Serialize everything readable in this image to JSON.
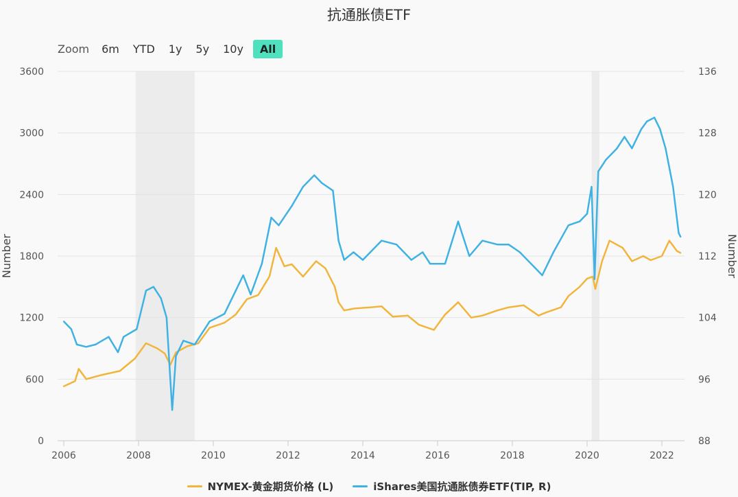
{
  "title": "抗通胀债ETF",
  "zoom": {
    "label": "Zoom",
    "buttons": [
      "6m",
      "YTD",
      "1y",
      "5y",
      "10y",
      "All"
    ],
    "active": "All"
  },
  "chart_data": {
    "type": "line",
    "title": "抗通胀债ETF",
    "x_ticks": [
      "2006",
      "2008",
      "2010",
      "2012",
      "2014",
      "2016",
      "2018",
      "2020",
      "2022"
    ],
    "x_range": [
      2006.0,
      2022.75
    ],
    "y_left": {
      "label": "Number",
      "range": [
        0,
        3600
      ],
      "ticks": [
        "0",
        "600",
        "1200",
        "1800",
        "2400",
        "3000",
        "3600"
      ]
    },
    "y_right": {
      "label": "Number",
      "range": [
        88,
        136
      ],
      "ticks": [
        "88",
        "96",
        "104",
        "112",
        "120",
        "128",
        "136"
      ]
    },
    "shaded_periods": [
      [
        2007.92,
        2009.5
      ],
      [
        2020.12,
        2020.33
      ]
    ],
    "grid": true,
    "legend_position": "bottom-center",
    "series": [
      {
        "name": "NYMEX-黄金期货价格 (L)",
        "axis": "left",
        "color": "#f2b53c",
        "x": [
          2006.0,
          2006.3,
          2006.4,
          2006.6,
          2007.0,
          2007.5,
          2007.9,
          2008.2,
          2008.5,
          2008.7,
          2008.85,
          2009.0,
          2009.3,
          2009.6,
          2009.9,
          2010.3,
          2010.6,
          2010.9,
          2011.2,
          2011.5,
          2011.68,
          2011.9,
          2012.1,
          2012.4,
          2012.75,
          2013.0,
          2013.25,
          2013.35,
          2013.5,
          2013.8,
          2014.2,
          2014.5,
          2014.8,
          2015.2,
          2015.5,
          2015.9,
          2016.2,
          2016.55,
          2016.9,
          2017.2,
          2017.6,
          2017.9,
          2018.3,
          2018.7,
          2018.9,
          2019.3,
          2019.5,
          2019.8,
          2020.0,
          2020.15,
          2020.22,
          2020.4,
          2020.6,
          2020.95,
          2021.2,
          2021.5,
          2021.7,
          2022.0,
          2022.2,
          2022.4,
          2022.5
        ],
        "y": [
          530,
          580,
          700,
          600,
          640,
          680,
          800,
          950,
          900,
          850,
          740,
          860,
          920,
          950,
          1100,
          1150,
          1230,
          1380,
          1420,
          1600,
          1880,
          1700,
          1720,
          1600,
          1750,
          1680,
          1500,
          1350,
          1270,
          1290,
          1300,
          1310,
          1210,
          1220,
          1130,
          1080,
          1230,
          1350,
          1200,
          1220,
          1270,
          1300,
          1320,
          1220,
          1250,
          1300,
          1410,
          1500,
          1580,
          1600,
          1480,
          1750,
          1950,
          1880,
          1750,
          1800,
          1760,
          1800,
          1950,
          1850,
          1830
        ]
      },
      {
        "name": "iShares美国抗通胀债券ETF(TIP, R)",
        "axis": "right",
        "color": "#3fb1e3",
        "x": [
          2006.0,
          2006.2,
          2006.35,
          2006.6,
          2006.85,
          2007.2,
          2007.45,
          2007.6,
          2007.95,
          2008.2,
          2008.4,
          2008.6,
          2008.75,
          2008.85,
          2008.9,
          2009.0,
          2009.2,
          2009.5,
          2009.9,
          2010.3,
          2010.6,
          2010.8,
          2011.0,
          2011.3,
          2011.55,
          2011.75,
          2012.1,
          2012.4,
          2012.7,
          2012.9,
          2013.2,
          2013.35,
          2013.5,
          2013.75,
          2014.0,
          2014.5,
          2014.9,
          2015.3,
          2015.6,
          2015.8,
          2016.2,
          2016.55,
          2016.85,
          2017.2,
          2017.6,
          2017.9,
          2018.2,
          2018.6,
          2018.8,
          2019.1,
          2019.5,
          2019.8,
          2020.0,
          2020.12,
          2020.2,
          2020.3,
          2020.5,
          2020.8,
          2021.0,
          2021.2,
          2021.45,
          2021.6,
          2021.8,
          2021.95,
          2022.1,
          2022.3,
          2022.45,
          2022.5
        ],
        "y": [
          103.5,
          102.5,
          100.5,
          100.2,
          100.5,
          101.5,
          99.5,
          101.5,
          102.5,
          107.5,
          108,
          106.5,
          104,
          96,
          92,
          99,
          101,
          100.5,
          103.5,
          104.5,
          107.5,
          109.5,
          107,
          111,
          117,
          116,
          118.5,
          121,
          122.5,
          121.5,
          120.5,
          114,
          111.5,
          112.5,
          111.5,
          114,
          113.5,
          111.5,
          112.5,
          111,
          111,
          116.5,
          112,
          114,
          113.5,
          113.5,
          112.5,
          110.5,
          109.5,
          112.5,
          116,
          116.5,
          117.5,
          121,
          109,
          123,
          124.5,
          126,
          127.5,
          126,
          128.5,
          129.5,
          130,
          128.5,
          126,
          121,
          115,
          114.5
        ]
      }
    ]
  },
  "legend": {
    "gold": "NYMEX-黄金期货价格 (L)",
    "tip": "iShares美国抗通胀债券ETF(TIP, R)"
  }
}
